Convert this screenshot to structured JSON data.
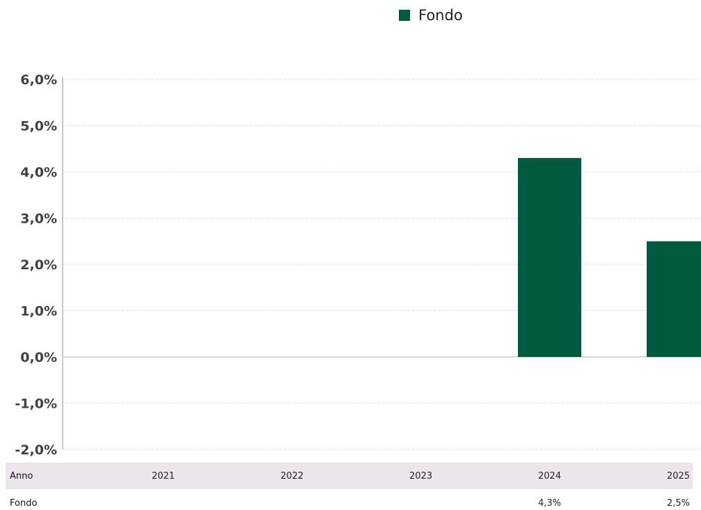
{
  "legend": {
    "label": "Fondo",
    "color": "#005a40"
  },
  "chart_data": {
    "type": "bar",
    "categories": [
      "2021",
      "2022",
      "2023",
      "2024",
      "2025"
    ],
    "series": [
      {
        "name": "Fondo",
        "values": [
          null,
          null,
          null,
          4.3,
          2.5
        ],
        "color": "#005a40"
      }
    ],
    "ylim": [
      -2,
      6
    ],
    "yticks": [
      "6,0%",
      "5,0%",
      "4,0%",
      "3,0%",
      "2,0%",
      "1,0%",
      "0,0%",
      "-1,0%",
      "-2,0%"
    ],
    "grid": true,
    "legend_position": "top"
  },
  "table": {
    "header_label": "Anno",
    "row_label": "Fondo",
    "years": [
      "2021",
      "2022",
      "2023",
      "2024",
      "2025"
    ],
    "values": [
      "",
      "",
      "",
      "4,3%",
      "2,5%"
    ],
    "band_color": "#ece6ec"
  }
}
